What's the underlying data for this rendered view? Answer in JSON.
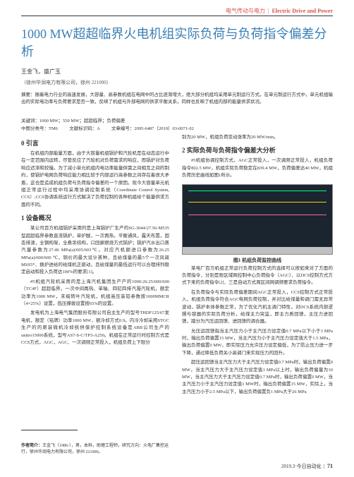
{
  "header": {
    "category_cn": "电气传动与电力",
    "category_en": "Electric Drive and Power"
  },
  "title": "1000 MW超超临界火电机组实际负荷与负荷指令偏差分析",
  "authors": "王金飞，盛广玉",
  "affiliation": "（徐州华润电力有限公司，徐州 221000）",
  "abstract_label": "摘要：",
  "abstract_text": "随着电力行业的高速发展，大容量、高参数机组在电网中的占比逐渐增大，绝大部分机组均采用单元制运行方式。在单元制运行方式中，单元机组输出的实际电功率与负荷要求是否一致，反映了机组与外部电网的供求平衡关系，同样也反映了机组内部的能量供求状况。",
  "keywords_label": "关键词：",
  "keywords_text": "1000 MW；550 MW；超超临界；负荷偏差",
  "classcodes": {
    "cn_label": "中图分类号：",
    "cn_value": "TM6",
    "doc_label": "文献标识码：",
    "doc_value": "A",
    "article_label": "文章编号：",
    "article_value": "2095-6487（2019）03-0071-02"
  },
  "right_intro": "别为20 MW，机组负荷变动涨率为20 MW/min。",
  "sections": {
    "s0": {
      "heading": "0 引言",
      "p1": "在机组内部能量方面，由于大容量机组锅炉和汽轮机是在动态运行中在一定范围内运转，尽管反应了汽轮机对负荷需求的响应，而锅炉对负荷响应迟滞和较慢。为了减小单元机组内电功率能量供需之间相互之间的制约，使锅炉电网负荷响应能力相比较于内部运行高参数之间存在着很大矛盾，这也是造成机组负荷与负荷指令偏差的一个原因。现今大容量单元机组正常运行过程中均采用协调控制系统（Coordinate Control System, CCS）,CCS协调系统运行方式解决了负荷控制的各种机组给个能量供求方面的不同。"
    },
    "s1": {
      "heading": "1 设备概况",
      "p1": "某公司百万机组锅炉采用的是上海锅炉厂生产的SG-3044/27.56-M535型超超临界参数直流锅炉，单炉膛，一次再热，平衡通风，露天布置，固态排渣，全钢构架，全悬吊结构，口回廊燃烧方式锅炉；锅炉汽水出口蒸汽量参数为27.46 MPa(a)/605/603℃，对应汽机额进口参数为26.25 MPa(a)/600/600  ℃，铜价的最大设计蒸种，且给煤量的最5个一次风疏MSS5*、换炉进给的给煤机正驱动，且给煤量的最低运行可以合理排列稳定启动和投入负荷达100%的要求[1]。",
      "p2": "#5机组汽轮机采用的是上海汽机集团生产产的1000-26.25/600/600（TC4F）超超临界，一次中间再热、单轴、四缸四排汽凝汽轮机，额定功率为1000 MW，末级转叶汽轮机，机组高压装铝参数按1000MMCR（4×25%）设置，低压撑拨设置按65%的设置。",
      "p3": "发电机为上海电气集团股份有限公司自主生产的型号THDF125/67发电机，额定（铭牌）功率1000 MW，额冷却方式0.9。内冷冷却采用STGC生产的的原装微机冷却统供保护控制系统设备是ABB公司生产的unitro15000系统，型号AS7-S-C/TP3-A250。机组在正常运行时控制方式是CCS方式，AGC，AGC、一次调频正常投入，机组负荷上下限分",
      "footnote_label": "作者简介：",
      "footnote_text": "王金飞（1986-），男，本科，助理工程师，研究方向：火电厂集控运行，徐州华润电力有限公司，徐州 221000。"
    },
    "s2": {
      "heading": "2 实际负荷与负荷指令偏差大分析",
      "p1": "#5机组协调控制方式，AGC正常投入，一次调频正常投入，机组负荷指令802.5 MW，机组实际负荷稳定在839.4 MW，负荷偏差达40 MW，机组负荷历史曲线如图1所示。",
      "fig_caption": "图1 机组负荷监控曲线",
      "p2": "某电厂百万机组正常运行负荷控制方式的选择可以按如来对了方面的负荷指令，分别是限区域网控制中心负荷指令（AGC）、以DCS控制方式方式下来的负荷指令[2]、三是自动方式周区间网调频要求负荷指令。",
      "p3": "在负荷指令与实际负荷偏差期间AGC正常投入，CCS控制方式正常投入，机组负荷指令符合AGC电网负荷控制，并对比给煤量和调门需无异常波动，锅炉本体参数正常，为了优化汽机主调门特性，对DCS系统内部逻辑与容器的实际负荷分析，给煤主力突监，即主力质回馈，主压力进回馈，踏分为汽压运回馈、进回馈的调合器。",
      "p4": "允压运回馈指当主汽压力小于主汽压力设定值0.7 MPa以下小于3 MPa时，输出负荷偏置15 MW，当主汽压力小于主汽压力设定值大于1.5  MPa，输出负荷偏置0  MW，即实际压力允许压力设定偏低，为了防止压力进一步下降，通过降低负荷关小高调门来实现压力的回升。",
      "p5": "超压运回馈当主汽压力大于主汽压力设定值0.7 MPa时，输出负荷偏置0 MW，当主汽压力大于主汽压力设定值1 MPa以上时，输出负荷偏量为10 MW，当主汽压力大于主汽压力设定值0.7 MPa时，输出负荷偏置0 MW，当主汽压力小于主汽压力设定值1 MW时，输出负荷偏置15 MW，实际上，当主汽压力小于2.5 MPa以下，输出负荷偏置负1 MPa大于26 MPa"
    }
  },
  "footer": {
    "issue": "2019.3·今日自动化",
    "page": "71"
  },
  "colors": {
    "title": "#3b7fb5",
    "header_accent": "#d9534f",
    "body_text": "#333333",
    "fig_bg": "#1a2530",
    "fig_line1": "#00ff88",
    "fig_line2": "#ffcc00",
    "fig_line3": "#ff6699"
  }
}
